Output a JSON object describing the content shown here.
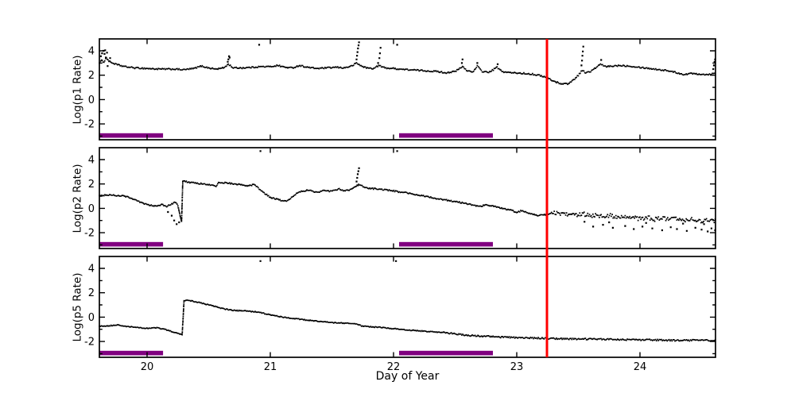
{
  "figure": {
    "xlabel": "Day of Year",
    "xlim": [
      19.613,
      24.613
    ],
    "ylim": [
      -3.3,
      4.98
    ],
    "x_ticks": [
      20,
      21,
      22,
      23,
      24
    ],
    "x_tick_labels": [
      "20",
      "21",
      "22",
      "23",
      "24"
    ],
    "y_major_ticks": [
      4,
      2,
      0,
      -2
    ],
    "y_tick_labels": [
      "4",
      "2",
      "0",
      "-2"
    ],
    "y_minor_ticks": [
      3,
      1,
      -1,
      -3
    ],
    "colors": {
      "data": "#000000",
      "axis": "#000000",
      "background": "#ffffff"
    },
    "event_line": {
      "day": 23.245,
      "color": "#ff0000",
      "width": 3
    },
    "highlight_bars": {
      "color": "#800080",
      "intervals": [
        [
          19.613,
          20.13
        ],
        [
          22.045,
          22.806
        ]
      ]
    }
  },
  "chart_data": [
    {
      "type": "scatter",
      "ylabel": "Log(p1 Rate)",
      "xlabel": "Day of Year",
      "xlim": [
        19.613,
        24.613
      ],
      "ylim": [
        -3.3,
        4.98
      ],
      "noise": {
        "base": 0.055,
        "ramps": []
      },
      "trend": [
        [
          19.613,
          3.0
        ],
        [
          19.63,
          3.2
        ],
        [
          19.65,
          3.1
        ],
        [
          19.67,
          3.45
        ],
        [
          19.69,
          3.15
        ],
        [
          19.72,
          3.0
        ],
        [
          19.76,
          2.85
        ],
        [
          19.82,
          2.7
        ],
        [
          19.9,
          2.6
        ],
        [
          20.0,
          2.55
        ],
        [
          20.1,
          2.5
        ],
        [
          20.22,
          2.5
        ],
        [
          20.3,
          2.45
        ],
        [
          20.38,
          2.55
        ],
        [
          20.44,
          2.75
        ],
        [
          20.5,
          2.6
        ],
        [
          20.56,
          2.5
        ],
        [
          20.62,
          2.6
        ],
        [
          20.66,
          2.9
        ],
        [
          20.7,
          2.6
        ],
        [
          20.78,
          2.6
        ],
        [
          20.86,
          2.65
        ],
        [
          20.92,
          2.7
        ],
        [
          21.0,
          2.7
        ],
        [
          21.06,
          2.8
        ],
        [
          21.12,
          2.65
        ],
        [
          21.18,
          2.6
        ],
        [
          21.24,
          2.8
        ],
        [
          21.3,
          2.65
        ],
        [
          21.38,
          2.55
        ],
        [
          21.46,
          2.6
        ],
        [
          21.54,
          2.65
        ],
        [
          21.6,
          2.6
        ],
        [
          21.66,
          2.75
        ],
        [
          21.7,
          3.0
        ],
        [
          21.73,
          2.8
        ],
        [
          21.78,
          2.6
        ],
        [
          21.84,
          2.55
        ],
        [
          21.88,
          2.8
        ],
        [
          21.93,
          2.6
        ],
        [
          22.0,
          2.55
        ],
        [
          22.05,
          2.5
        ],
        [
          22.12,
          2.45
        ],
        [
          22.2,
          2.4
        ],
        [
          22.28,
          2.35
        ],
        [
          22.36,
          2.3
        ],
        [
          22.42,
          2.2
        ],
        [
          22.5,
          2.3
        ],
        [
          22.56,
          2.7
        ],
        [
          22.6,
          2.35
        ],
        [
          22.65,
          2.3
        ],
        [
          22.68,
          2.75
        ],
        [
          22.72,
          2.3
        ],
        [
          22.78,
          2.25
        ],
        [
          22.84,
          2.65
        ],
        [
          22.88,
          2.3
        ],
        [
          22.95,
          2.2
        ],
        [
          23.05,
          2.15
        ],
        [
          23.12,
          2.1
        ],
        [
          23.2,
          1.95
        ],
        [
          23.245,
          1.8
        ],
        [
          23.3,
          1.5
        ],
        [
          23.36,
          1.3
        ],
        [
          23.42,
          1.3
        ],
        [
          23.47,
          1.7
        ],
        [
          23.5,
          2.0
        ],
        [
          23.53,
          2.4
        ],
        [
          23.56,
          2.2
        ],
        [
          23.6,
          2.3
        ],
        [
          23.64,
          2.6
        ],
        [
          23.68,
          2.9
        ],
        [
          23.72,
          2.7
        ],
        [
          23.78,
          2.75
        ],
        [
          23.84,
          2.8
        ],
        [
          23.92,
          2.75
        ],
        [
          24.0,
          2.65
        ],
        [
          24.08,
          2.55
        ],
        [
          24.16,
          2.45
        ],
        [
          24.24,
          2.35
        ],
        [
          24.3,
          2.2
        ],
        [
          24.36,
          2.05
        ],
        [
          24.42,
          2.15
        ],
        [
          24.48,
          2.1
        ],
        [
          24.54,
          2.05
        ],
        [
          24.58,
          2.1
        ],
        [
          24.61,
          2.2
        ]
      ],
      "outliers": [
        [
          19.625,
          3.55
        ],
        [
          19.635,
          3.8
        ],
        [
          19.645,
          4.0
        ],
        [
          19.655,
          3.75
        ],
        [
          19.66,
          4.05
        ],
        [
          19.665,
          3.45
        ],
        [
          19.675,
          3.85
        ],
        [
          19.68,
          2.75
        ],
        [
          19.7,
          3.4
        ],
        [
          20.655,
          3.1
        ],
        [
          20.66,
          3.3
        ],
        [
          20.665,
          3.55
        ],
        [
          20.67,
          3.45
        ],
        [
          20.91,
          4.5
        ],
        [
          21.7,
          3.3
        ],
        [
          21.704,
          3.6
        ],
        [
          21.708,
          3.9
        ],
        [
          21.712,
          4.2
        ],
        [
          21.716,
          4.45
        ],
        [
          21.72,
          4.7
        ],
        [
          21.875,
          3.0
        ],
        [
          21.885,
          3.4
        ],
        [
          21.89,
          3.8
        ],
        [
          21.895,
          4.25
        ],
        [
          22.03,
          4.5
        ],
        [
          22.555,
          3.0
        ],
        [
          22.56,
          3.3
        ],
        [
          22.68,
          3.0
        ],
        [
          22.845,
          2.9
        ],
        [
          23.525,
          2.8
        ],
        [
          23.53,
          3.2
        ],
        [
          23.533,
          3.6
        ],
        [
          23.536,
          3.95
        ],
        [
          23.54,
          4.35
        ],
        [
          23.685,
          3.25
        ],
        [
          24.595,
          2.5
        ],
        [
          24.6,
          2.8
        ],
        [
          24.605,
          3.1
        ],
        [
          24.61,
          3.3
        ]
      ]
    },
    {
      "type": "scatter",
      "ylabel": "Log(p2 Rate)",
      "xlabel": "Day of Year",
      "xlim": [
        19.613,
        24.613
      ],
      "ylim": [
        -3.3,
        4.98
      ],
      "noise": {
        "base": 0.05,
        "ramps": [
          {
            "from": 23.28,
            "amp": 0.17
          }
        ]
      },
      "trend": [
        [
          19.613,
          1.05
        ],
        [
          19.68,
          1.1
        ],
        [
          19.76,
          1.05
        ],
        [
          19.82,
          1.0
        ],
        [
          19.87,
          0.85
        ],
        [
          19.92,
          0.6
        ],
        [
          19.97,
          0.4
        ],
        [
          20.02,
          0.25
        ],
        [
          20.07,
          0.2
        ],
        [
          20.12,
          0.3
        ],
        [
          20.16,
          0.15
        ],
        [
          20.2,
          0.35
        ],
        [
          20.23,
          0.5
        ],
        [
          20.25,
          0.2
        ],
        [
          20.26,
          -0.2
        ],
        [
          20.27,
          -0.7
        ],
        [
          20.28,
          -1.1
        ],
        [
          20.29,
          2.25
        ],
        [
          20.34,
          2.15
        ],
        [
          20.4,
          2.05
        ],
        [
          20.46,
          2.0
        ],
        [
          20.52,
          1.9
        ],
        [
          20.56,
          1.82
        ],
        [
          20.58,
          2.1
        ],
        [
          20.64,
          2.1
        ],
        [
          20.7,
          2.0
        ],
        [
          20.76,
          1.95
        ],
        [
          20.82,
          1.85
        ],
        [
          20.87,
          1.95
        ],
        [
          20.91,
          1.6
        ],
        [
          20.95,
          1.25
        ],
        [
          21.0,
          0.9
        ],
        [
          21.05,
          0.75
        ],
        [
          21.1,
          0.62
        ],
        [
          21.14,
          0.6
        ],
        [
          21.18,
          0.95
        ],
        [
          21.22,
          1.3
        ],
        [
          21.26,
          1.42
        ],
        [
          21.32,
          1.5
        ],
        [
          21.36,
          1.3
        ],
        [
          21.4,
          1.35
        ],
        [
          21.44,
          1.5
        ],
        [
          21.48,
          1.42
        ],
        [
          21.52,
          1.5
        ],
        [
          21.56,
          1.58
        ],
        [
          21.6,
          1.45
        ],
        [
          21.64,
          1.52
        ],
        [
          21.68,
          1.68
        ],
        [
          21.705,
          1.9
        ],
        [
          21.73,
          1.95
        ],
        [
          21.76,
          1.72
        ],
        [
          21.8,
          1.65
        ],
        [
          21.86,
          1.6
        ],
        [
          21.92,
          1.52
        ],
        [
          21.98,
          1.48
        ],
        [
          22.04,
          1.35
        ],
        [
          22.1,
          1.28
        ],
        [
          22.16,
          1.15
        ],
        [
          22.22,
          1.05
        ],
        [
          22.28,
          0.95
        ],
        [
          22.34,
          0.82
        ],
        [
          22.4,
          0.72
        ],
        [
          22.46,
          0.62
        ],
        [
          22.52,
          0.52
        ],
        [
          22.58,
          0.42
        ],
        [
          22.64,
          0.28
        ],
        [
          22.7,
          0.15
        ],
        [
          22.75,
          0.28
        ],
        [
          22.8,
          0.2
        ],
        [
          22.85,
          0.08
        ],
        [
          22.9,
          -0.05
        ],
        [
          22.95,
          -0.12
        ],
        [
          23.0,
          -0.35
        ],
        [
          23.04,
          -0.18
        ],
        [
          23.08,
          -0.32
        ],
        [
          23.12,
          -0.45
        ],
        [
          23.17,
          -0.58
        ],
        [
          23.21,
          -0.5
        ],
        [
          23.245,
          -0.52
        ],
        [
          23.29,
          -0.38
        ],
        [
          23.34,
          -0.45
        ],
        [
          23.39,
          -0.55
        ],
        [
          23.44,
          -0.48
        ],
        [
          23.49,
          -0.62
        ],
        [
          23.54,
          -0.45
        ],
        [
          23.59,
          -0.6
        ],
        [
          23.64,
          -0.55
        ],
        [
          23.7,
          -0.68
        ],
        [
          23.76,
          -0.6
        ],
        [
          23.82,
          -0.75
        ],
        [
          23.88,
          -0.65
        ],
        [
          23.94,
          -0.78
        ],
        [
          24.0,
          -0.85
        ],
        [
          24.06,
          -0.75
        ],
        [
          24.12,
          -0.9
        ],
        [
          24.18,
          -0.82
        ],
        [
          24.24,
          -0.95
        ],
        [
          24.3,
          -0.88
        ],
        [
          24.36,
          -1.0
        ],
        [
          24.42,
          -0.92
        ],
        [
          24.48,
          -1.05
        ],
        [
          24.54,
          -0.98
        ],
        [
          24.61,
          -1.05
        ]
      ],
      "outliers": [
        [
          20.17,
          -0.3
        ],
        [
          20.2,
          -0.6
        ],
        [
          20.22,
          -1.0
        ],
        [
          20.24,
          -1.3
        ],
        [
          20.26,
          -1.15
        ],
        [
          20.92,
          4.7
        ],
        [
          21.7,
          2.2
        ],
        [
          21.705,
          2.5
        ],
        [
          21.71,
          2.8
        ],
        [
          21.715,
          3.05
        ],
        [
          21.72,
          3.3
        ],
        [
          22.03,
          4.7
        ],
        [
          23.55,
          -1.1
        ],
        [
          23.62,
          -1.5
        ],
        [
          23.7,
          -1.35
        ],
        [
          23.75,
          -1.15
        ],
        [
          23.78,
          -1.6
        ],
        [
          23.88,
          -1.45
        ],
        [
          23.95,
          -1.7
        ],
        [
          24.02,
          -1.5
        ],
        [
          24.05,
          -1.2
        ],
        [
          24.1,
          -1.65
        ],
        [
          24.18,
          -1.8
        ],
        [
          24.25,
          -1.55
        ],
        [
          24.3,
          -1.7
        ],
        [
          24.35,
          -1.25
        ],
        [
          24.38,
          -1.85
        ],
        [
          24.45,
          -1.6
        ],
        [
          24.5,
          -1.75
        ],
        [
          24.52,
          -1.3
        ],
        [
          24.55,
          -1.9
        ],
        [
          24.58,
          -1.65
        ],
        [
          24.61,
          -1.8
        ]
      ]
    },
    {
      "type": "scatter",
      "ylabel": "Log(p5 Rate)",
      "xlabel": "Day of Year",
      "xlim": [
        19.613,
        24.613
      ],
      "ylim": [
        -3.3,
        4.98
      ],
      "noise": {
        "base": 0.035,
        "ramps": [
          {
            "from": 22.4,
            "amp": 0.06
          }
        ]
      },
      "trend": [
        [
          19.613,
          -0.75
        ],
        [
          19.7,
          -0.7
        ],
        [
          19.76,
          -0.65
        ],
        [
          19.84,
          -0.78
        ],
        [
          19.92,
          -0.85
        ],
        [
          20.0,
          -0.92
        ],
        [
          20.08,
          -0.88
        ],
        [
          20.16,
          -1.05
        ],
        [
          20.22,
          -1.25
        ],
        [
          20.285,
          -1.45
        ],
        [
          20.3,
          1.35
        ],
        [
          20.34,
          1.38
        ],
        [
          20.4,
          1.25
        ],
        [
          20.48,
          1.05
        ],
        [
          20.56,
          0.85
        ],
        [
          20.62,
          0.68
        ],
        [
          20.7,
          0.55
        ],
        [
          20.8,
          0.5
        ],
        [
          20.9,
          0.42
        ],
        [
          21.0,
          0.18
        ],
        [
          21.1,
          0.0
        ],
        [
          21.2,
          -0.12
        ],
        [
          21.3,
          -0.25
        ],
        [
          21.4,
          -0.35
        ],
        [
          21.5,
          -0.45
        ],
        [
          21.6,
          -0.5
        ],
        [
          21.7,
          -0.55
        ],
        [
          21.74,
          -0.72
        ],
        [
          21.8,
          -0.78
        ],
        [
          21.9,
          -0.85
        ],
        [
          22.0,
          -0.95
        ],
        [
          22.1,
          -1.05
        ],
        [
          22.2,
          -1.12
        ],
        [
          22.3,
          -1.2
        ],
        [
          22.4,
          -1.25
        ],
        [
          22.5,
          -1.38
        ],
        [
          22.6,
          -1.5
        ],
        [
          22.7,
          -1.55
        ],
        [
          22.8,
          -1.6
        ],
        [
          22.9,
          -1.65
        ],
        [
          23.0,
          -1.68
        ],
        [
          23.12,
          -1.72
        ],
        [
          23.245,
          -1.75
        ],
        [
          23.4,
          -1.78
        ],
        [
          23.55,
          -1.8
        ],
        [
          23.7,
          -1.82
        ],
        [
          23.85,
          -1.85
        ],
        [
          24.0,
          -1.87
        ],
        [
          24.15,
          -1.88
        ],
        [
          24.3,
          -1.92
        ],
        [
          24.45,
          -1.9
        ],
        [
          24.61,
          -1.92
        ]
      ],
      "outliers": [
        [
          20.92,
          4.6
        ],
        [
          22.02,
          4.6
        ]
      ]
    }
  ]
}
